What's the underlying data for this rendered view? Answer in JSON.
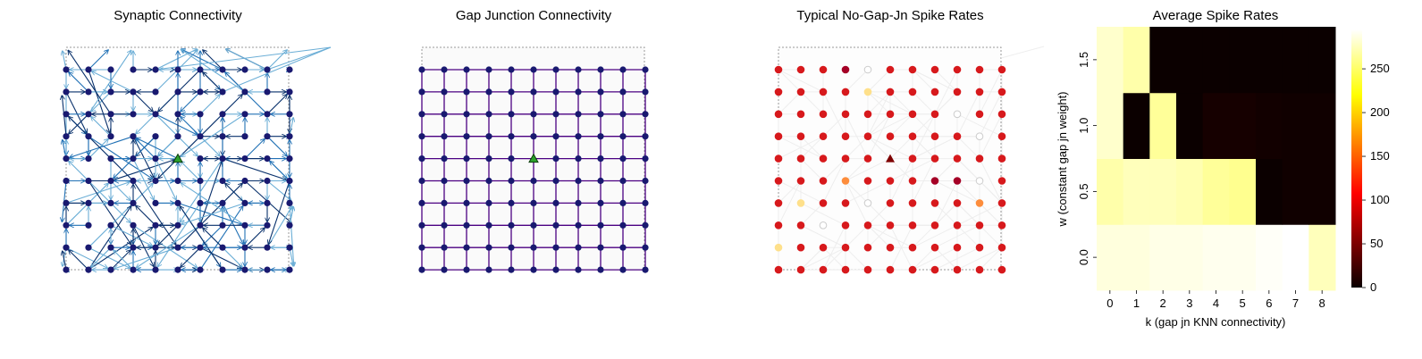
{
  "panels": [
    {
      "id": "synaptic",
      "title": "Synaptic Connectivity"
    },
    {
      "id": "gap",
      "title": "Gap Junction Connectivity"
    },
    {
      "id": "nogap",
      "title": "Typical No-Gap-Jn Spike Rates"
    },
    {
      "id": "heatmap",
      "title": "Average Spike Rates"
    }
  ],
  "colors": {
    "node": "#191970",
    "synaptic_edge_dark": "#08306b",
    "synaptic_edge_light": "#6baed6",
    "gap_edge": "#4b0082",
    "marker_triangle": "#2ca02c",
    "frame": "#999999"
  },
  "grid": {
    "rows": 10,
    "cols": 11
  },
  "chart_data": [
    {
      "type": "scatter",
      "title": "Synaptic Connectivity",
      "description_note": "",
      "grid_size": [
        11,
        10
      ],
      "highlight_node": {
        "col": 5,
        "row": 5,
        "marker": "triangle"
      }
    },
    {
      "type": "scatter",
      "title": "Gap Junction Connectivity",
      "grid_size": [
        11,
        10
      ],
      "highlight_node": {
        "col": 5,
        "row": 5,
        "marker": "triangle"
      }
    },
    {
      "type": "scatter",
      "title": "Typical No-Gap-Jn Spike Rates",
      "grid_size": [
        11,
        10
      ],
      "highlight_node": {
        "col": 5,
        "row": 5,
        "marker": "triangle"
      },
      "rates_top_to_bottom": [
        [
          200,
          230,
          240,
          250,
          0,
          230,
          230,
          230,
          240,
          230
        ],
        [
          230,
          230,
          230,
          230,
          60,
          230,
          230,
          230,
          230,
          230
        ],
        [
          230,
          230,
          230,
          230,
          230,
          230,
          230,
          230,
          0,
          230
        ],
        [
          230,
          230,
          230,
          230,
          230,
          230,
          230,
          230,
          230,
          0
        ],
        [
          230,
          230,
          230,
          230,
          230,
          270,
          230,
          230,
          230,
          230
        ],
        [
          230,
          230,
          230,
          190,
          230,
          230,
          230,
          250,
          250,
          0
        ],
        [
          230,
          60,
          230,
          230,
          0,
          230,
          230,
          230,
          230,
          100
        ],
        [
          230,
          230,
          0,
          230,
          230,
          230,
          230,
          230,
          230,
          230
        ],
        [
          30,
          230,
          230,
          230,
          230,
          230,
          230,
          230,
          230,
          230
        ]
      ]
    },
    {
      "type": "heatmap",
      "title": "Average Spike Rates",
      "xlabel": "k (gap jn KNN connectivity)",
      "ylabel": "w (constant gap jn weight)",
      "x_ticks": [
        "0",
        "1",
        "2",
        "3",
        "4",
        "5",
        "6",
        "7",
        "8"
      ],
      "y_ticks": [
        "0.0",
        "0.5",
        "1.0",
        "1.5"
      ],
      "y_values": [
        0.0,
        0.5,
        1.0,
        1.5
      ],
      "values_by_row": [
        [
          285,
          285,
          288,
          288,
          290,
          290,
          293,
          295,
          275
        ],
        [
          270,
          275,
          275,
          272,
          265,
          262,
          0,
          2,
          2
        ],
        [
          280,
          0,
          265,
          0,
          5,
          5,
          3,
          2,
          2
        ],
        [
          280,
          270,
          0,
          0,
          0,
          0,
          0,
          0,
          0
        ]
      ],
      "colorbar": {
        "ticks": [
          0,
          50,
          100,
          150,
          200,
          250
        ],
        "range": [
          0,
          295
        ],
        "colormap": "hot"
      }
    }
  ]
}
